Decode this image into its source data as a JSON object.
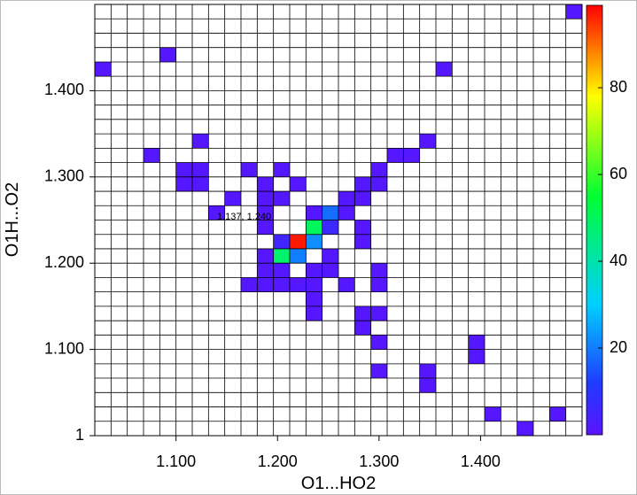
{
  "chart_data": {
    "type": "heatmap",
    "x_label": "O1...HO2",
    "y_label": "O1H...O2",
    "annotation": "1.137, 1.240",
    "xlim": [
      1.02,
      1.5
    ],
    "ylim": [
      1,
      1.5
    ],
    "xticks": [
      {
        "value": 1.1,
        "label": "1.100"
      },
      {
        "value": 1.2,
        "label": "1.200"
      },
      {
        "value": 1.3,
        "label": "1.300"
      },
      {
        "value": 1.4,
        "label": "1.400"
      }
    ],
    "yticks": [
      1,
      {
        "value": 1.1,
        "label": "1.100"
      },
      {
        "value": 1.2,
        "label": "1.200"
      },
      {
        "value": 1.3,
        "label": "1.300"
      },
      {
        "value": 1.4,
        "label": "1.400"
      }
    ],
    "xbins": [
      1.02,
      1.036,
      1.052,
      1.068,
      1.084,
      1.1,
      1.116,
      1.132,
      1.148,
      1.164,
      1.18,
      1.196,
      1.212,
      1.228,
      1.244,
      1.26,
      1.276,
      1.292,
      1.308,
      1.324,
      1.34,
      1.356,
      1.372,
      1.388,
      1.404,
      1.42,
      1.436,
      1.452,
      1.468,
      1.484,
      1.5
    ],
    "ybins": [
      1,
      1.0167,
      1.0333,
      1.05,
      1.0667,
      1.0833,
      1.1,
      1.1167,
      1.1333,
      1.15,
      1.1667,
      1.1833,
      1.2,
      1.2167,
      1.2333,
      1.25,
      1.2667,
      1.2833,
      1.3,
      1.3167,
      1.3333,
      1.35,
      1.3667,
      1.3833,
      1.4,
      1.4167,
      1.4333,
      1.45,
      1.4667,
      1.4833,
      1.5
    ],
    "clim": [
      0,
      99
    ],
    "cticks": [
      20,
      40,
      60,
      80
    ],
    "colormap": [
      [
        0,
        "#5a14ff"
      ],
      [
        12,
        "#1f3bff"
      ],
      [
        30,
        "#00d0ff"
      ],
      [
        55,
        "#00ff33"
      ],
      [
        78,
        "#ffff00"
      ],
      [
        99,
        "#ff0000"
      ]
    ],
    "cells": [
      [
        1.484,
        1.4833,
        1
      ],
      [
        1.02,
        1.4167,
        1
      ],
      [
        1.084,
        1.4333,
        1
      ],
      [
        1.356,
        1.4167,
        1
      ],
      [
        1.116,
        1.3333,
        1
      ],
      [
        1.068,
        1.3167,
        1
      ],
      [
        1.34,
        1.3333,
        1
      ],
      [
        1.308,
        1.3167,
        1
      ],
      [
        1.324,
        1.3167,
        1
      ],
      [
        1.1,
        1.3,
        1
      ],
      [
        1.116,
        1.3,
        1
      ],
      [
        1.164,
        1.3,
        1
      ],
      [
        1.196,
        1.3,
        1
      ],
      [
        1.292,
        1.3,
        1
      ],
      [
        1.1,
        1.2833,
        1
      ],
      [
        1.116,
        1.2833,
        1
      ],
      [
        1.18,
        1.2833,
        1
      ],
      [
        1.212,
        1.2833,
        1
      ],
      [
        1.276,
        1.2833,
        1
      ],
      [
        1.292,
        1.2833,
        1
      ],
      [
        1.148,
        1.2667,
        1
      ],
      [
        1.18,
        1.2667,
        1
      ],
      [
        1.196,
        1.2667,
        1
      ],
      [
        1.26,
        1.2667,
        1
      ],
      [
        1.276,
        1.2667,
        1
      ],
      [
        1.132,
        1.25,
        1
      ],
      [
        1.18,
        1.25,
        1
      ],
      [
        1.228,
        1.25,
        1
      ],
      [
        1.244,
        1.25,
        18
      ],
      [
        1.26,
        1.25,
        1
      ],
      [
        1.18,
        1.2333,
        1
      ],
      [
        1.228,
        1.2333,
        50
      ],
      [
        1.244,
        1.2333,
        6
      ],
      [
        1.276,
        1.2333,
        1
      ],
      [
        1.196,
        1.2167,
        5
      ],
      [
        1.212,
        1.2167,
        97
      ],
      [
        1.228,
        1.2167,
        22
      ],
      [
        1.276,
        1.2167,
        1
      ],
      [
        1.18,
        1.2,
        1
      ],
      [
        1.196,
        1.2,
        48
      ],
      [
        1.212,
        1.2,
        20
      ],
      [
        1.244,
        1.2,
        1
      ],
      [
        1.18,
        1.1833,
        1
      ],
      [
        1.196,
        1.1833,
        1
      ],
      [
        1.228,
        1.1833,
        1
      ],
      [
        1.244,
        1.1833,
        1
      ],
      [
        1.292,
        1.1833,
        1
      ],
      [
        1.164,
        1.1667,
        1
      ],
      [
        1.18,
        1.1667,
        1
      ],
      [
        1.196,
        1.1667,
        1
      ],
      [
        1.212,
        1.1667,
        1
      ],
      [
        1.228,
        1.1667,
        1
      ],
      [
        1.26,
        1.1667,
        1
      ],
      [
        1.292,
        1.1667,
        1
      ],
      [
        1.228,
        1.15,
        1
      ],
      [
        1.228,
        1.1333,
        1
      ],
      [
        1.276,
        1.1333,
        1
      ],
      [
        1.292,
        1.1333,
        1
      ],
      [
        1.276,
        1.1167,
        1
      ],
      [
        1.292,
        1.1,
        1
      ],
      [
        1.388,
        1.1,
        1
      ],
      [
        1.388,
        1.0833,
        1
      ],
      [
        1.292,
        1.0667,
        1
      ],
      [
        1.34,
        1.0667,
        1
      ],
      [
        1.34,
        1.05,
        1
      ],
      [
        1.404,
        1.0167,
        1
      ],
      [
        1.468,
        1.0167,
        1
      ],
      [
        1.436,
        1,
        1
      ]
    ]
  }
}
